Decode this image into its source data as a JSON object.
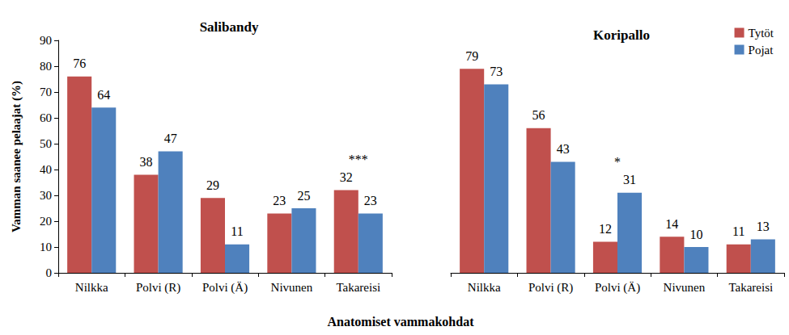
{
  "chart_data": {
    "type": "bar",
    "ylabel": "Vamman saanee pelaajat (%)",
    "xlabel": "Anatomiset vammakohdat",
    "ylim": [
      0,
      90
    ],
    "yticks": [
      0,
      10,
      20,
      30,
      40,
      50,
      60,
      70,
      80,
      90
    ],
    "grid": false,
    "data_labels": true,
    "legend": "upper right",
    "series": [
      {
        "name": "Tytöt",
        "color": "#c0504d"
      },
      {
        "name": "Pojat",
        "color": "#4f81bd"
      }
    ],
    "panels": [
      {
        "title": "Salibandy",
        "categories": [
          "Nilkka",
          "Polvi (R)",
          "Polvi (Ä)",
          "Nivunen",
          "Takareisi"
        ],
        "values": [
          [
            76,
            38,
            29,
            23,
            32
          ],
          [
            64,
            47,
            11,
            25,
            23
          ]
        ],
        "annotations": [
          {
            "category": "Takareisi",
            "text": "***"
          }
        ]
      },
      {
        "title": "Koripallo",
        "categories": [
          "Nilkka",
          "Polvi (R)",
          "Polvi (Ä)",
          "Nivunen",
          "Takareisi"
        ],
        "values": [
          [
            79,
            56,
            12,
            14,
            11
          ],
          [
            73,
            43,
            31,
            10,
            13
          ]
        ],
        "annotations": [
          {
            "category": "Polvi (Ä)",
            "text": "*"
          }
        ]
      }
    ]
  }
}
